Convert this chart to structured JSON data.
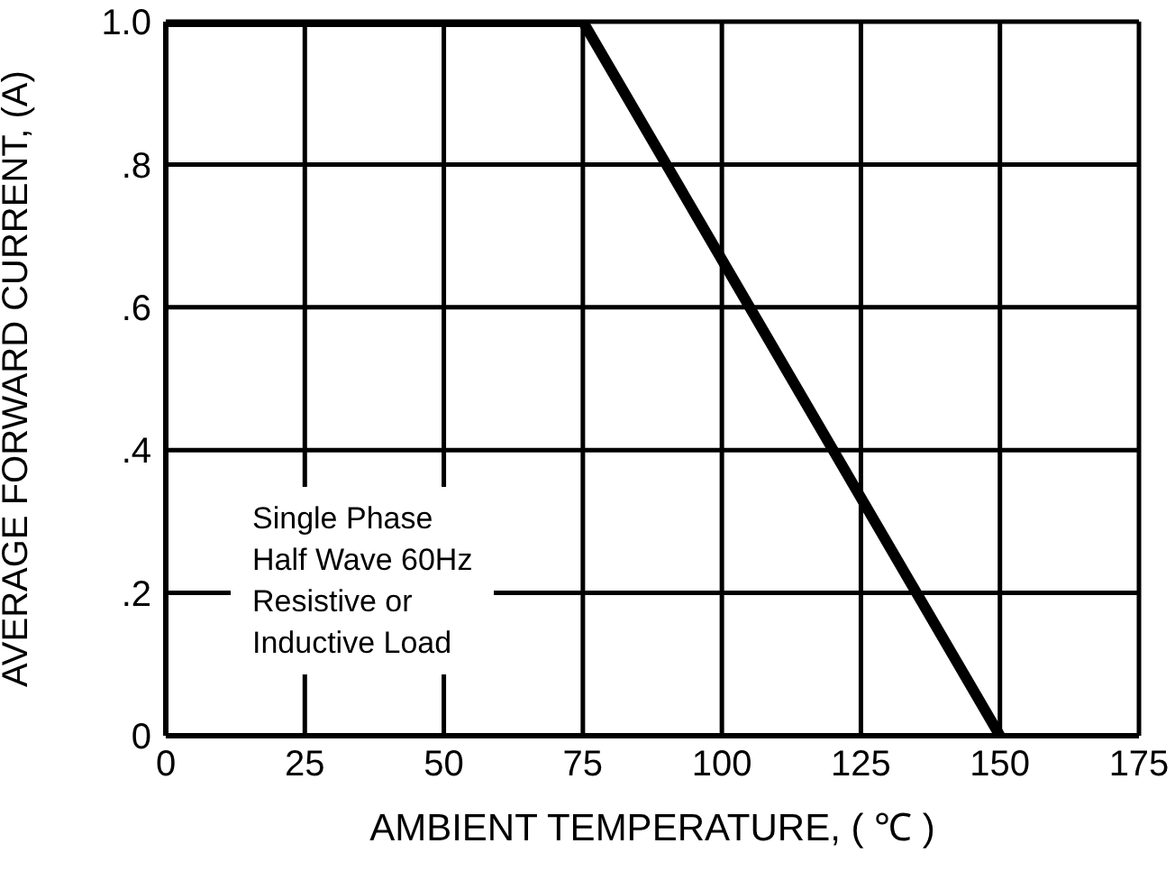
{
  "chart_data": {
    "type": "line",
    "xlabel": "AMBIENT TEMPERATURE, ( ℃ )",
    "ylabel": "AVERAGE FORWARD CURRENT, (A)",
    "x": [
      0,
      75,
      150
    ],
    "series": [
      {
        "color": "#000000",
        "values": [
          1,
          1,
          0
        ]
      }
    ],
    "xlim": [
      0,
      175
    ],
    "xticks": [
      0,
      25,
      50,
      75,
      100,
      125,
      150,
      175
    ],
    "ylim": [
      0,
      1
    ],
    "yticks": [
      0,
      {
        "value": 0.2,
        "label": ".2"
      },
      {
        "value": 0.4,
        "label": ".4"
      },
      {
        "value": 0.6,
        "label": ".6"
      },
      {
        "value": 0.8,
        "label": ".8"
      },
      {
        "value": 1,
        "label": "1.0"
      }
    ],
    "grid": true,
    "marker": "none",
    "line_style": "solid",
    "legend": false,
    "annotations": [
      "Single Phase\nHalf Wave 60Hz\nResistive or\nInductive Load"
    ]
  }
}
